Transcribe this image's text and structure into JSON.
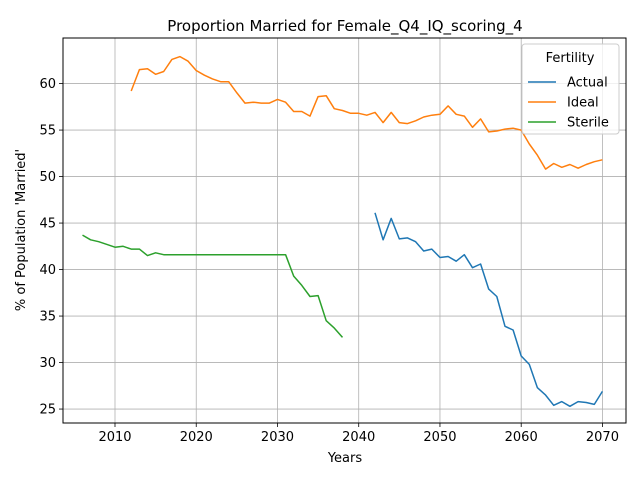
{
  "chart_data": {
    "type": "line",
    "title": "Proportion Married for Female_Q4_IQ_scoring_4",
    "xlabel": "Years",
    "ylabel": "% of Population 'Married'",
    "xlim": [
      2003.6,
      2072.9
    ],
    "ylim": [
      23.5,
      64.9
    ],
    "xticks": [
      2010,
      2020,
      2030,
      2040,
      2050,
      2060,
      2070
    ],
    "yticks": [
      25,
      30,
      35,
      40,
      45,
      50,
      55,
      60
    ],
    "grid": true,
    "legend": {
      "title": "Fertility",
      "placement": "top-right"
    },
    "series": [
      {
        "name": "Actual",
        "color": "#1f77b4",
        "x": [
          2042,
          2043,
          2044,
          2045,
          2046,
          2047,
          2048,
          2049,
          2050,
          2051,
          2052,
          2053,
          2054,
          2055,
          2056,
          2057,
          2058,
          2059,
          2060,
          2061,
          2062,
          2063,
          2064,
          2065,
          2066,
          2067,
          2068,
          2069,
          2070
        ],
        "y": [
          46.1,
          43.2,
          45.5,
          43.3,
          43.4,
          43.0,
          42.0,
          42.2,
          41.3,
          41.4,
          40.9,
          41.6,
          40.2,
          40.6,
          37.9,
          37.1,
          33.9,
          33.5,
          30.7,
          29.8,
          27.3,
          26.5,
          25.4,
          25.8,
          25.3,
          25.8,
          25.7,
          25.5,
          26.9
        ]
      },
      {
        "name": "Ideal",
        "color": "#ff7f0e",
        "x": [
          2012,
          2013,
          2014,
          2015,
          2016,
          2017,
          2018,
          2019,
          2020,
          2021,
          2022,
          2023,
          2024,
          2025,
          2026,
          2027,
          2028,
          2029,
          2030,
          2031,
          2032,
          2033,
          2034,
          2035,
          2036,
          2037,
          2038,
          2039,
          2040,
          2041,
          2042,
          2043,
          2044,
          2045,
          2046,
          2047,
          2048,
          2049,
          2050,
          2051,
          2052,
          2053,
          2054,
          2055,
          2056,
          2057,
          2058,
          2059,
          2060,
          2061,
          2062,
          2063,
          2064,
          2065,
          2066,
          2067,
          2068,
          2069,
          2070
        ],
        "y": [
          59.2,
          61.5,
          61.6,
          61.0,
          61.3,
          62.6,
          62.9,
          62.4,
          61.4,
          60.9,
          60.5,
          60.2,
          60.2,
          59.0,
          57.9,
          58.0,
          57.9,
          57.9,
          58.3,
          58.0,
          57.0,
          57.0,
          56.5,
          58.6,
          58.7,
          57.3,
          57.1,
          56.8,
          56.8,
          56.6,
          56.9,
          55.8,
          56.9,
          55.8,
          55.7,
          56.0,
          56.4,
          56.6,
          56.7,
          57.6,
          56.7,
          56.5,
          55.3,
          56.2,
          54.8,
          54.9,
          55.1,
          55.2,
          55.0,
          53.5,
          52.3,
          50.8,
          51.4,
          51.0,
          51.3,
          50.9,
          51.3,
          51.6,
          51.8
        ]
      },
      {
        "name": "Sterile",
        "color": "#2ca02c",
        "x": [
          2006,
          2007,
          2008,
          2009,
          2010,
          2011,
          2012,
          2013,
          2014,
          2015,
          2016,
          2017,
          2018,
          2019,
          2020,
          2021,
          2022,
          2023,
          2024,
          2025,
          2026,
          2027,
          2028,
          2029,
          2030,
          2031,
          2032,
          2033,
          2034,
          2035,
          2036,
          2037,
          2038
        ],
        "y": [
          43.7,
          43.2,
          43.0,
          42.7,
          42.4,
          42.5,
          42.2,
          42.2,
          41.5,
          41.8,
          41.6,
          41.6,
          41.6,
          41.6,
          41.6,
          41.6,
          41.6,
          41.6,
          41.6,
          41.6,
          41.6,
          41.6,
          41.6,
          41.6,
          41.6,
          41.6,
          39.3,
          38.3,
          37.1,
          37.2,
          34.5,
          33.7,
          32.7
        ]
      }
    ]
  }
}
